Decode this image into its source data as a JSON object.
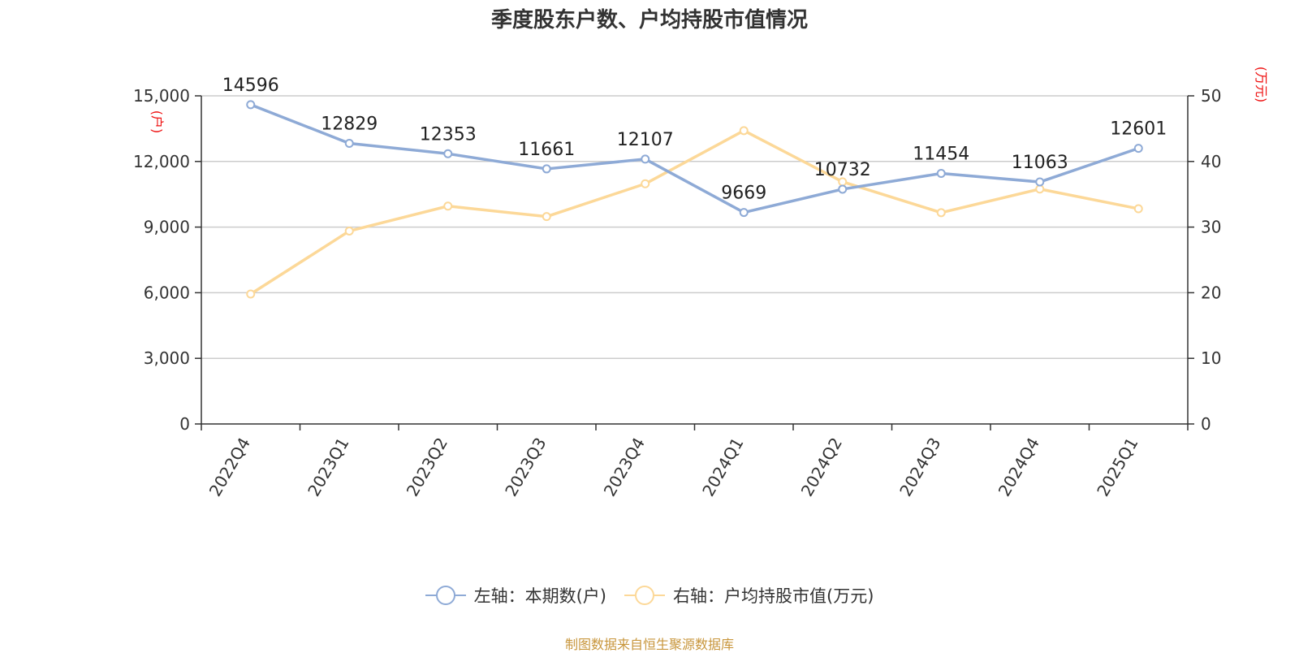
{
  "chart_data": {
    "type": "line",
    "title": "季度股东户数、户均持股市值情况",
    "categories": [
      "2022Q4",
      "2023Q1",
      "2023Q2",
      "2023Q3",
      "2023Q4",
      "2024Q1",
      "2024Q2",
      "2024Q3",
      "2024Q4",
      "2025Q1"
    ],
    "series": [
      {
        "name": "左轴：本期数(户)",
        "axis": "left",
        "color": "#8eaad6",
        "values": [
          14596,
          12829,
          12353,
          11661,
          12107,
          9669,
          10732,
          11454,
          11063,
          12601
        ],
        "data_labels": [
          "14596",
          "12829",
          "12353",
          "11661",
          "12107",
          "9669",
          "10732",
          "11454",
          "11063",
          "12601"
        ]
      },
      {
        "name": "右轴：户均持股市值(万元)",
        "axis": "right",
        "color": "#fcd898",
        "values": [
          19.8,
          29.4,
          33.2,
          31.6,
          36.6,
          44.7,
          36.9,
          32.2,
          35.8,
          32.8
        ]
      }
    ],
    "left_axis": {
      "unit": "(户)",
      "min": 0,
      "max": 15000,
      "ticks": [
        "0",
        "3,000",
        "6,000",
        "9,000",
        "12,000",
        "15,000"
      ]
    },
    "right_axis": {
      "unit": "(万元)",
      "min": 0,
      "max": 50,
      "ticks": [
        "0",
        "10",
        "20",
        "30",
        "40",
        "50"
      ]
    },
    "grid": true,
    "legend_position": "bottom"
  },
  "source": "制图数据来自恒生聚源数据库"
}
